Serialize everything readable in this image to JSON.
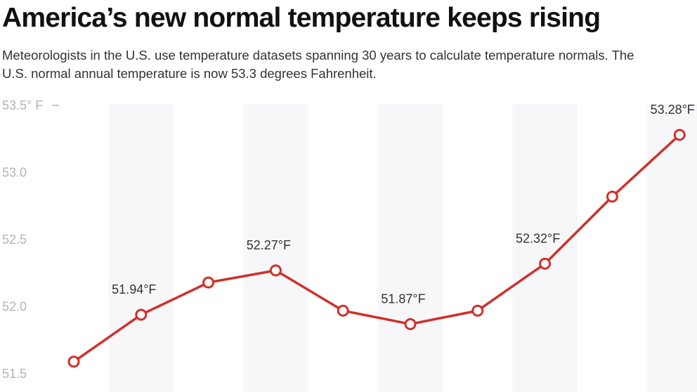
{
  "title": "America’s new normal temperature keeps rising",
  "subtitle": "Meteorologists in the U.S. use temperature datasets spanning 30 years to calculate temperature normals. The U.S. normal annual temperature is now 53.3 degrees Fahrenheit.",
  "chart_data": {
    "type": "line",
    "title": "America’s new normal temperature keeps rising",
    "subtitle": "Meteorologists in the U.S. use temperature datasets spanning 30 years to calculate temperature normals. The U.S. normal annual temperature is now 53.3 degrees Fahrenheit.",
    "xlabel": "",
    "ylabel": "",
    "ylim": [
      51.5,
      53.5
    ],
    "y_ticks": [
      {
        "value": 53.5,
        "label": "53.5° F"
      },
      {
        "value": 53.0,
        "label": "53.0"
      },
      {
        "value": 52.5,
        "label": "52.5"
      },
      {
        "value": 52.0,
        "label": "52.0"
      },
      {
        "value": 51.5,
        "label": "51.5"
      }
    ],
    "grid": false,
    "alternating_bands": true,
    "line_color": "#d0302b",
    "marker_fill": "#ffffff",
    "band_color": "#f7f7f9",
    "tick_color": "#b3b3b3",
    "series": [
      {
        "values": [
          51.59,
          51.94,
          52.18,
          52.27,
          51.97,
          51.87,
          51.97,
          52.32,
          52.82,
          53.28
        ],
        "labels": [
          "",
          "51.94°F",
          "",
          "52.27°F",
          "",
          "51.87°F",
          "",
          "52.32°F",
          "",
          "53.28°F"
        ]
      }
    ]
  }
}
